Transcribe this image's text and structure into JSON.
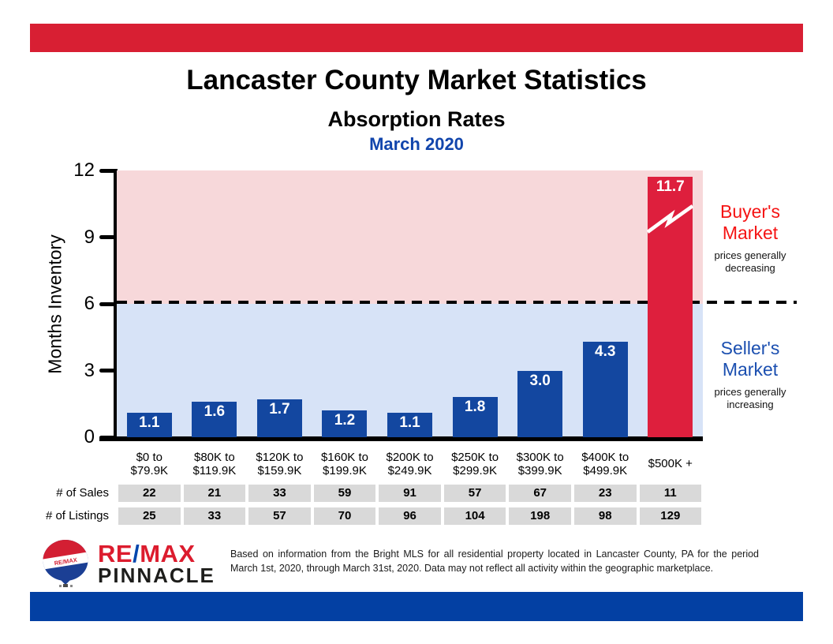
{
  "page": {
    "title": "Lancaster County Market Statistics",
    "subtitle": "Absorption Rates",
    "period": "March 2020"
  },
  "colors": {
    "header_bar": "#d81f33",
    "footer_bar": "#0340a3",
    "bar_default": "#1347a0",
    "bar_highlight": "#de1f3d",
    "buyer_zone_bg": "#f7d8da",
    "seller_zone_bg": "#d7e3f7",
    "buyer_text": "#f51414",
    "seller_text": "#1b4fb0",
    "period_text": "#1145ac",
    "table_cell_bg": "#d9d9d9",
    "remax_red": "#dc1c2e",
    "remax_blue": "#0046ad"
  },
  "chart_data": {
    "type": "bar",
    "title": "Lancaster County Market Statistics",
    "subtitle": "Absorption Rates",
    "period": "March 2020",
    "ylabel": "Months Inventory",
    "xlabel": "",
    "ylim": [
      0,
      12
    ],
    "yticks": [
      0,
      3,
      6,
      9,
      12
    ],
    "grid": false,
    "threshold": {
      "value": 6,
      "style": "dashed-black"
    },
    "categories": [
      "$0 to $79.9K",
      "$80K to $119.9K",
      "$120K to $159.9K",
      "$160K to $199.9K",
      "$200K to $249.9K",
      "$250K to $299.9K",
      "$300K to $399.9K",
      "$400K to $499.9K",
      "$500K +"
    ],
    "categories_lines": [
      [
        "$0 to",
        "$79.9K"
      ],
      [
        "$80K to",
        "$119.9K"
      ],
      [
        "$120K to",
        "$159.9K"
      ],
      [
        "$160K to",
        "$199.9K"
      ],
      [
        "$200K to",
        "$249.9K"
      ],
      [
        "$250K to",
        "$299.9K"
      ],
      [
        "$300K to",
        "$399.9K"
      ],
      [
        "$400K to",
        "$499.9K"
      ],
      [
        "$500K +"
      ]
    ],
    "series": [
      {
        "name": "Months Inventory",
        "values": [
          1.1,
          1.6,
          1.7,
          1.2,
          1.1,
          1.8,
          3.0,
          4.3,
          11.7
        ]
      }
    ],
    "values": [
      1.1,
      1.6,
      1.7,
      1.2,
      1.1,
      1.8,
      3.0,
      4.3,
      11.7
    ],
    "value_labels": [
      "1.1",
      "1.6",
      "1.7",
      "1.2",
      "1.1",
      "1.8",
      "3.0",
      "4.3",
      "11.7"
    ],
    "highlight_index": 8,
    "scale_break_index": 8,
    "zones": [
      {
        "label": "Buyer's Market",
        "note": "prices generally decreasing",
        "range": [
          6,
          12
        ]
      },
      {
        "label": "Seller's Market",
        "note": "prices generally increasing",
        "range": [
          0,
          6
        ]
      }
    ],
    "table": {
      "rows": [
        {
          "label": "# of Sales",
          "values": [
            22,
            21,
            33,
            59,
            91,
            57,
            67,
            23,
            11
          ]
        },
        {
          "label": "# of Listings",
          "values": [
            25,
            33,
            57,
            70,
            96,
            104,
            198,
            98,
            129
          ]
        }
      ]
    }
  },
  "annotations": {
    "buyer": {
      "title": "Buyer's Market",
      "note": "prices generally decreasing"
    },
    "seller": {
      "title": "Seller's Market",
      "note": "prices generally increasing"
    }
  },
  "footer": {
    "logo": {
      "balloon_icon": "remax-balloon-icon",
      "balloon_band_text": "RE/MAX",
      "brand_re": "RE",
      "brand_slash": "/",
      "brand_max": "MAX",
      "office_name": "PINNACLE"
    },
    "disclaimer": "Based on information from the Bright MLS for all residential property located in Lancaster County, PA for the period March 1st, 2020, through March 31st, 2020.  Data may not reflect all activity within the geographic marketplace."
  }
}
